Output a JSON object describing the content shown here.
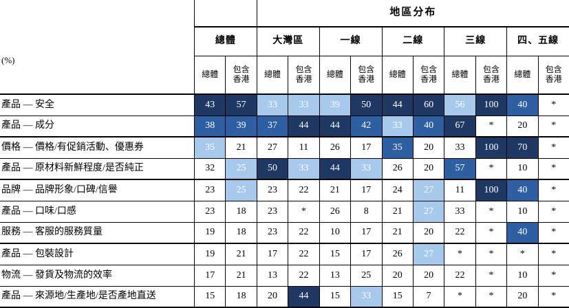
{
  "chart_data": {
    "type": "heatmap",
    "title": "地區分布",
    "unit": "(%)",
    "column_groups": [
      "總體",
      "大灣區",
      "一線",
      "二線",
      "三線",
      "四、五線"
    ],
    "sub_columns": [
      "總體",
      "包含\n香港"
    ],
    "shade_colors": {
      "dark": "#1f3864",
      "medium": "#2e5fa3",
      "light": "#a6c9ec",
      "none": "#ffffff"
    },
    "text_colors": {
      "on_shade": "#ffffff",
      "on_white": "#000000"
    },
    "rows": [
      {
        "label": "產品 — 安全",
        "values": [
          "43",
          "57",
          "33",
          "33",
          "39",
          "50",
          "44",
          "60",
          "56",
          "100",
          "40",
          "*"
        ],
        "shades": [
          "dark",
          "dark",
          "light",
          "light",
          "light",
          "dark",
          "dark",
          "dark",
          "light",
          "dark",
          "medium",
          "none"
        ]
      },
      {
        "label": "產品 — 成分",
        "values": [
          "38",
          "39",
          "37",
          "44",
          "44",
          "42",
          "33",
          "40",
          "67",
          "*",
          "20",
          "*"
        ],
        "shades": [
          "medium",
          "medium",
          "medium",
          "dark",
          "dark",
          "medium",
          "light",
          "medium",
          "dark",
          "none",
          "none",
          "none"
        ]
      },
      {
        "label": "價格 — 價格/有促銷活動、優惠券",
        "values": [
          "35",
          "21",
          "27",
          "11",
          "26",
          "17",
          "35",
          "20",
          "33",
          "100",
          "70",
          "*"
        ],
        "shades": [
          "light",
          "none",
          "none",
          "none",
          "none",
          "none",
          "medium",
          "none",
          "none",
          "dark",
          "dark",
          "none"
        ]
      },
      {
        "label": "產品 — 原材料新鮮程度/是否純正",
        "values": [
          "32",
          "25",
          "50",
          "33",
          "44",
          "33",
          "26",
          "20",
          "57",
          "*",
          "10",
          "*"
        ],
        "shades": [
          "none",
          "light",
          "dark",
          "light",
          "dark",
          "light",
          "none",
          "none",
          "medium",
          "none",
          "none",
          "none"
        ]
      },
      {
        "label": "品牌 — 品牌形象/口碑/信譽",
        "values": [
          "23",
          "25",
          "23",
          "22",
          "21",
          "17",
          "24",
          "27",
          "11",
          "100",
          "40",
          "*"
        ],
        "shades": [
          "none",
          "light",
          "none",
          "none",
          "none",
          "none",
          "none",
          "light",
          "none",
          "dark",
          "medium",
          "none"
        ]
      },
      {
        "label": "產品 — 口味/口感",
        "values": [
          "23",
          "18",
          "23",
          "*",
          "26",
          "8",
          "21",
          "27",
          "33",
          "*",
          "10",
          "*"
        ],
        "shades": [
          "none",
          "none",
          "none",
          "none",
          "none",
          "none",
          "none",
          "light",
          "none",
          "none",
          "none",
          "none"
        ]
      },
      {
        "label": "服務 — 客服的服務質量",
        "values": [
          "19",
          "18",
          "23",
          "22",
          "10",
          "17",
          "21",
          "20",
          "22",
          "*",
          "40",
          "*"
        ],
        "shades": [
          "none",
          "none",
          "none",
          "none",
          "none",
          "none",
          "none",
          "none",
          "none",
          "none",
          "medium",
          "none"
        ]
      },
      {
        "label": "產品 — 包裝設計",
        "values": [
          "19",
          "21",
          "17",
          "22",
          "15",
          "17",
          "26",
          "27",
          "*",
          "*",
          "*",
          "*"
        ],
        "shades": [
          "none",
          "none",
          "none",
          "none",
          "none",
          "none",
          "none",
          "light",
          "none",
          "none",
          "none",
          "none"
        ]
      },
      {
        "label": "物流 — 發貨及物流的效率",
        "values": [
          "17",
          "21",
          "13",
          "22",
          "13",
          "25",
          "20",
          "20",
          "22",
          "*",
          "10",
          "*"
        ],
        "shades": [
          "none",
          "none",
          "none",
          "none",
          "none",
          "none",
          "none",
          "none",
          "none",
          "none",
          "none",
          "none"
        ]
      },
      {
        "label": "產品 — 來源地/生產地/是否產地直送",
        "values": [
          "15",
          "18",
          "20",
          "44",
          "15",
          "33",
          "15",
          "7",
          "*",
          "*",
          "20",
          "*"
        ],
        "shades": [
          "none",
          "none",
          "none",
          "dark",
          "none",
          "light",
          "none",
          "none",
          "none",
          "none",
          "none",
          "none"
        ]
      }
    ]
  }
}
